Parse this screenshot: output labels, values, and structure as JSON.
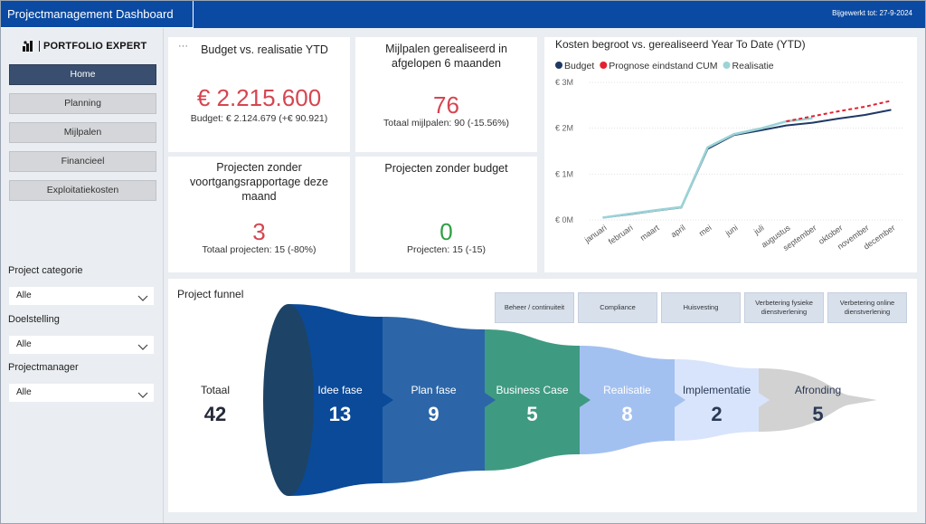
{
  "header": {
    "title": "Projectmanagement Dashboard",
    "updated": "Bijgewerkt tot: 27-9-2024"
  },
  "sidebar": {
    "logo_text": "PORTFOLIO EXPERT",
    "nav": [
      "Home",
      "Planning",
      "Mijlpalen",
      "Financieel",
      "Exploitatiekosten"
    ],
    "filters": [
      {
        "label": "Project categorie",
        "value": "Alle"
      },
      {
        "label": "Doelstelling",
        "value": "Alle"
      },
      {
        "label": "Projectmanager",
        "value": "Alle"
      }
    ]
  },
  "kpis": {
    "budget": {
      "more": "···",
      "title": "Budget vs. realisatie YTD",
      "value": "€ 2.215.600",
      "sub": "Budget: € 2.124.679 (+€ 90.921)"
    },
    "milestones": {
      "title": "Mijlpalen gerealiseerd in afgelopen 6 maanden",
      "value": "76",
      "sub": "Totaal mijlpalen: 90 (-15.56%)"
    },
    "no_report": {
      "title": "Projecten zonder voortgangsrapportage deze maand",
      "value": "3",
      "sub": "Totaal projecten: 15 (-80%)"
    },
    "no_budget": {
      "title": "Projecten zonder budget",
      "value": "0",
      "sub": "Projecten: 15 (-15)"
    }
  },
  "chart_data": {
    "type": "line",
    "title": "Kosten begroot vs. gerealiseerd Year To Date (YTD)",
    "x": [
      "januari",
      "februari",
      "maart",
      "april",
      "mei",
      "juni",
      "juli",
      "augustus",
      "september",
      "oktober",
      "november",
      "december"
    ],
    "yticks": [
      "€ 0M",
      "€ 1M",
      "€ 2M",
      "€ 3M"
    ],
    "ylim": [
      0,
      3000000
    ],
    "legend_position": "top-left",
    "series": [
      {
        "name": "Budget",
        "color": "#1f3864",
        "values": [
          50000,
          120000,
          200000,
          270000,
          1550000,
          1850000,
          1950000,
          2060000,
          2120000,
          2210000,
          2290000,
          2400000
        ]
      },
      {
        "name": "Prognose eindstand CUM",
        "color": "#e3212f",
        "values": [
          null,
          null,
          null,
          null,
          null,
          null,
          null,
          2150000,
          2260000,
          2370000,
          2470000,
          2600000
        ]
      },
      {
        "name": "Realisatie",
        "color": "#9bd3d6",
        "values": [
          50000,
          130000,
          210000,
          280000,
          1580000,
          1870000,
          1990000,
          2150000,
          2215600,
          null,
          null,
          null
        ]
      }
    ]
  },
  "funnel": {
    "title": "Project funnel",
    "total_label": "Totaal",
    "total_value": "42",
    "categories": [
      "Beheer / continuiteit",
      "Compliance",
      "Huisvesting",
      "Verbetering fysieke dienstverlening",
      "Verbetering online dienstverlening"
    ],
    "stages": [
      {
        "name": "Idee fase",
        "count": "13",
        "color": "#0a4a99",
        "text": "#ffffff"
      },
      {
        "name": "Plan fase",
        "count": "9",
        "color": "#2c66a8",
        "text": "#ffffff"
      },
      {
        "name": "Business Case",
        "count": "5",
        "color": "#3f9a82",
        "text": "#ffffff"
      },
      {
        "name": "Realisatie",
        "count": "8",
        "color": "#a3c1f0",
        "text": "#ffffff"
      },
      {
        "name": "Implementatie",
        "count": "2",
        "color": "#d8e4fb",
        "text": "#2b3a55"
      },
      {
        "name": "Afronding",
        "count": "5",
        "color": "#d2d2d2",
        "text": "#2b3a55"
      }
    ]
  }
}
